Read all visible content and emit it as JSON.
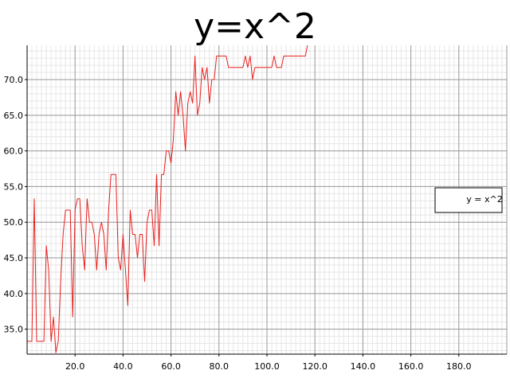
{
  "chart_data": {
    "type": "line",
    "title": "y=x^2",
    "xlabel": "",
    "ylabel": "",
    "xlim": [
      0,
      200
    ],
    "ylim": [
      31.5,
      74.8
    ],
    "xticks": [
      20,
      40,
      60,
      80,
      100,
      120,
      140,
      160,
      180
    ],
    "xtick_labels": [
      "20.0",
      "40.0",
      "60.0",
      "80.0",
      "100.0",
      "120.0",
      "140.0",
      "160.0",
      "180.0"
    ],
    "yticks": [
      35,
      40,
      45,
      50,
      55,
      60,
      65,
      70
    ],
    "ytick_labels": [
      "35.0",
      "40.0",
      "45.0",
      "50.0",
      "55.0",
      "60.0",
      "65.0",
      "70.0"
    ],
    "grid": true,
    "legend_position": "right",
    "series": [
      {
        "name": "y = x^2",
        "color": "#e8201e",
        "x": [
          0,
          2,
          3,
          4,
          5,
          6,
          7,
          8,
          9,
          10,
          11,
          12,
          13,
          14,
          15,
          16,
          17,
          18,
          19,
          20,
          21,
          22,
          23,
          24,
          25,
          26,
          27,
          28,
          29,
          30,
          31,
          32,
          33,
          34,
          35,
          36,
          37,
          38,
          39,
          40,
          41,
          42,
          43,
          44,
          45,
          46,
          47,
          48,
          49,
          50,
          51,
          52,
          53,
          54,
          55,
          56,
          57,
          58,
          59,
          60,
          61,
          62,
          63,
          64,
          65,
          66,
          67,
          68,
          69,
          70,
          71,
          72,
          73,
          74,
          75,
          76,
          77,
          78,
          79,
          80,
          81,
          82,
          83,
          84,
          85,
          86,
          87,
          88,
          89,
          90,
          91,
          92,
          93,
          94,
          95,
          96,
          97,
          98,
          99,
          100,
          101,
          102,
          103,
          104,
          105,
          106,
          107,
          108,
          109,
          110,
          111,
          112,
          113,
          114,
          115,
          116,
          117,
          118,
          120,
          140,
          160,
          180,
          200
        ],
        "values": [
          33.3,
          33.3,
          53.3,
          33.3,
          33.3,
          33.3,
          33.3,
          46.7,
          43.3,
          33.3,
          36.7,
          31.7,
          33.3,
          41.7,
          48.3,
          51.7,
          51.7,
          51.7,
          36.7,
          51.7,
          53.3,
          53.3,
          46.7,
          43.3,
          53.3,
          50.0,
          50.0,
          48.3,
          43.3,
          48.3,
          50.0,
          48.3,
          43.3,
          51.7,
          56.7,
          56.7,
          56.7,
          45.0,
          43.3,
          48.3,
          43.3,
          38.3,
          51.7,
          48.3,
          48.3,
          45.0,
          48.3,
          48.3,
          41.7,
          50.0,
          51.7,
          51.7,
          46.7,
          56.7,
          46.7,
          56.7,
          56.7,
          60.0,
          60.0,
          58.3,
          61.7,
          68.3,
          65.0,
          68.3,
          65.0,
          60.0,
          66.7,
          68.3,
          66.7,
          73.3,
          65.0,
          66.7,
          71.7,
          70.0,
          71.7,
          66.7,
          70.0,
          70.0,
          73.3,
          73.3,
          73.3,
          73.3,
          73.3,
          71.7,
          71.7,
          71.7,
          71.7,
          71.7,
          71.7,
          71.7,
          73.3,
          71.7,
          73.3,
          70.0,
          71.7,
          71.7,
          71.7,
          71.7,
          71.7,
          71.7,
          71.7,
          71.7,
          73.3,
          71.7,
          71.7,
          71.7,
          73.3,
          73.3,
          73.3,
          73.3,
          73.3,
          73.3,
          73.3,
          73.3,
          73.3,
          73.3,
          75.0,
          75.0,
          75.0,
          75.0,
          75.0,
          75.0,
          75.0
        ]
      }
    ]
  }
}
